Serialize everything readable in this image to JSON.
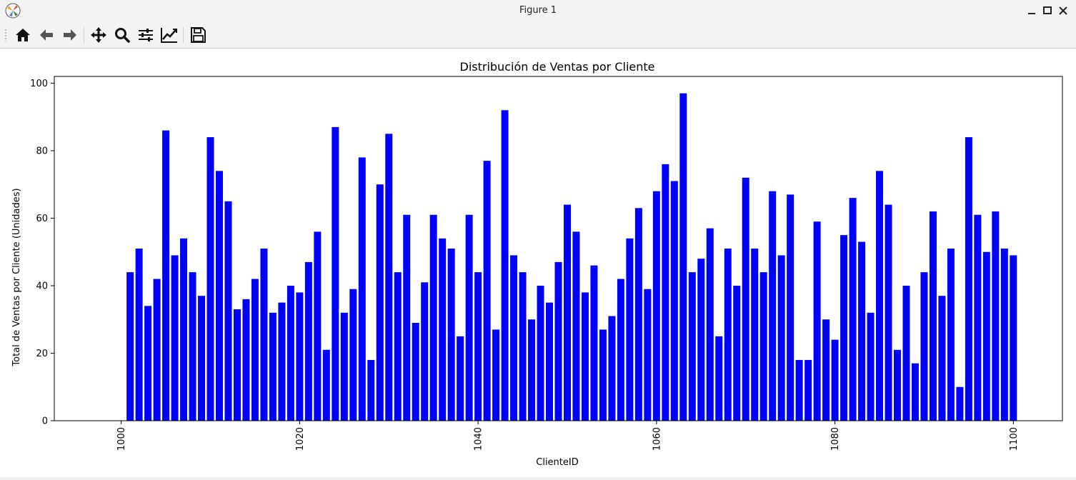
{
  "window": {
    "title": "Figure 1"
  },
  "toolbar": {
    "buttons": [
      {
        "name": "home",
        "icon": "home-icon"
      },
      {
        "name": "back",
        "icon": "arrow-left-icon"
      },
      {
        "name": "forward",
        "icon": "arrow-right-icon"
      },
      {
        "name": "pan",
        "icon": "move-icon"
      },
      {
        "name": "zoom",
        "icon": "magnifier-icon"
      },
      {
        "name": "configure-subplots",
        "icon": "sliders-icon"
      },
      {
        "name": "edit-axis",
        "icon": "line-chart-icon"
      },
      {
        "name": "save",
        "icon": "floppy-icon"
      }
    ]
  },
  "chart_data": {
    "type": "bar",
    "title": "Distribución de Ventas por Cliente",
    "xlabel": "ClienteID",
    "ylabel": "Total de Ventas por Cliente (Unidades)",
    "x_start": 1001,
    "values": [
      44,
      51,
      34,
      42,
      86,
      49,
      54,
      44,
      37,
      84,
      74,
      65,
      33,
      36,
      42,
      51,
      32,
      35,
      40,
      38,
      47,
      56,
      21,
      87,
      32,
      39,
      78,
      18,
      70,
      85,
      44,
      61,
      29,
      41,
      61,
      54,
      51,
      25,
      61,
      44,
      77,
      27,
      92,
      49,
      44,
      30,
      40,
      35,
      47,
      64,
      56,
      38,
      46,
      27,
      31,
      42,
      54,
      63,
      39,
      68,
      76,
      71,
      97,
      44,
      48,
      57,
      25,
      51,
      40,
      72,
      51,
      44,
      68,
      49,
      67,
      18,
      18,
      59,
      30,
      24,
      55,
      66,
      53,
      32,
      74,
      64,
      21,
      40,
      17,
      44,
      62,
      37,
      51,
      10,
      84,
      61,
      50,
      62,
      51,
      49
    ],
    "xticks": [
      1000,
      1020,
      1040,
      1060,
      1080,
      1100
    ],
    "yticks": [
      0,
      20,
      40,
      60,
      80,
      100
    ],
    "xlim": [
      992.5,
      1105.5
    ],
    "ylim": [
      0,
      102
    ],
    "bar_color": "#0000ff",
    "grid": false
  }
}
